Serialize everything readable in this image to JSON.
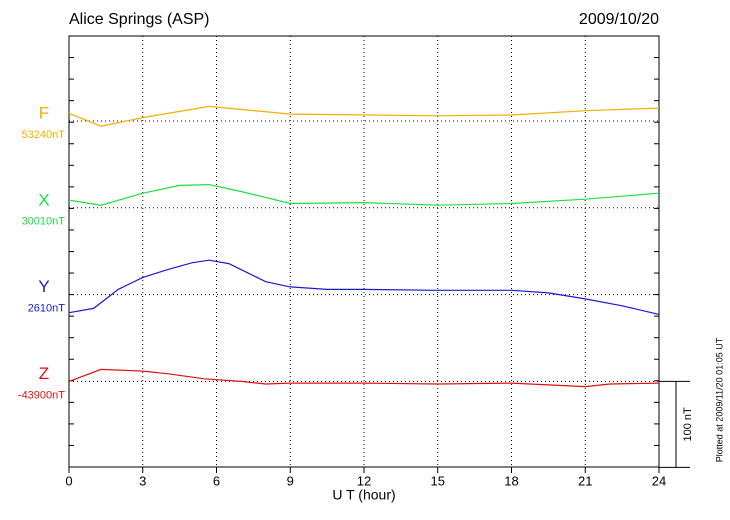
{
  "chart_data": {
    "type": "line",
    "title": "Alice Springs (ASP)",
    "date": "2009/10/20",
    "xlabel": "U T (hour)",
    "note": "Plotted at 2009/11/20 01:05 UT",
    "xlim": [
      0,
      24
    ],
    "xticks": [
      0,
      3,
      6,
      9,
      12,
      15,
      18,
      21,
      24
    ],
    "scale": {
      "value": 100,
      "label": "100 nT"
    },
    "series": [
      {
        "name": "F",
        "color": "#f0b000",
        "baseline": {
          "value": 53240,
          "label": "53240nT"
        },
        "x": [
          0,
          1.3,
          3,
          5.7,
          9,
          15,
          18,
          21,
          24
        ],
        "values": [
          53249,
          53234,
          53244,
          53257,
          53248,
          53246,
          53247,
          53252,
          53255
        ]
      },
      {
        "name": "X",
        "color": "#22dd44",
        "baseline": {
          "value": 30010,
          "label": "30010nT"
        },
        "x": [
          0,
          1.3,
          3,
          4.5,
          5.7,
          7,
          9,
          12,
          15,
          18,
          21,
          24
        ],
        "values": [
          30019,
          30013,
          30027,
          30036,
          30037,
          30029,
          30015,
          30016,
          30013,
          30015,
          30020,
          30027
        ]
      },
      {
        "name": "Y",
        "color": "#1a1acc",
        "baseline": {
          "value": 2610,
          "label": "2610nT"
        },
        "x": [
          0,
          1,
          2,
          3,
          4,
          5,
          5.7,
          6.5,
          8,
          9,
          10.5,
          12,
          15,
          18,
          19.5,
          21,
          22.5,
          24
        ],
        "values": [
          2589,
          2594,
          2616,
          2630,
          2639,
          2647,
          2650,
          2646,
          2625,
          2619,
          2616,
          2616,
          2615,
          2615,
          2612,
          2605,
          2597,
          2587
        ]
      },
      {
        "name": "Z",
        "color": "#dd1111",
        "baseline": {
          "value": -43900,
          "label": "-43900nT"
        },
        "x": [
          0,
          1.3,
          3,
          4,
          5.5,
          7,
          8,
          9,
          12,
          15,
          18,
          21,
          22,
          24
        ],
        "values": [
          -43900,
          -43886,
          -43888,
          -43891,
          -43897,
          -43900,
          -43903,
          -43902,
          -43902,
          -43903,
          -43902,
          -43906,
          -43903,
          -43902
        ]
      }
    ]
  }
}
